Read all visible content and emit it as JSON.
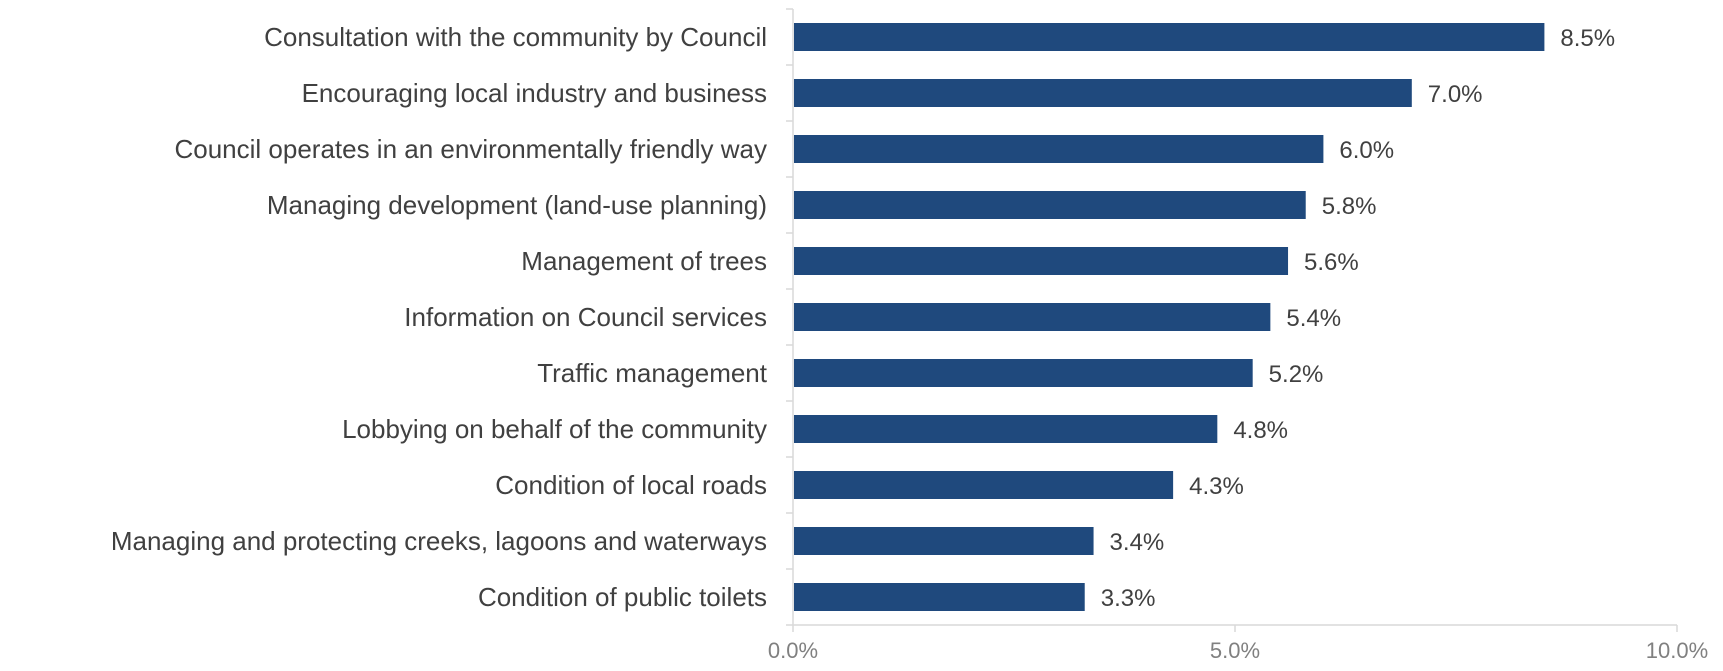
{
  "chart_data": {
    "type": "bar",
    "orientation": "horizontal",
    "categories": [
      "Consultation with the community by Council",
      "Encouraging local industry and business",
      "Council operates in an environmentally friendly way",
      "Managing development (land-use planning)",
      "Management of trees",
      "Information on Council services",
      "Traffic management",
      "Lobbying on behalf of the community",
      "Condition of local roads",
      "Managing and protecting creeks, lagoons and waterways",
      "Condition of public toilets"
    ],
    "values": [
      8.5,
      7.0,
      6.0,
      5.8,
      5.6,
      5.4,
      5.2,
      4.8,
      4.3,
      3.4,
      3.3
    ],
    "value_labels": [
      "8.5%",
      "7.0%",
      "6.0%",
      "5.8%",
      "5.6%",
      "5.4%",
      "5.2%",
      "4.8%",
      "4.3%",
      "3.4%",
      "3.3%"
    ],
    "xlim": [
      0,
      10
    ],
    "x_ticks": [
      0,
      5,
      10
    ],
    "x_tick_labels": [
      "0.0%",
      "5.0%",
      "10.0%"
    ],
    "title": "",
    "xlabel": "",
    "ylabel": "",
    "grid": false,
    "legend": "none",
    "colors": {
      "bar": "#1f497d",
      "category_text": "#404040",
      "value_text": "#404040",
      "tick_text": "#808080",
      "axis_line": "#d9d9d9"
    }
  }
}
